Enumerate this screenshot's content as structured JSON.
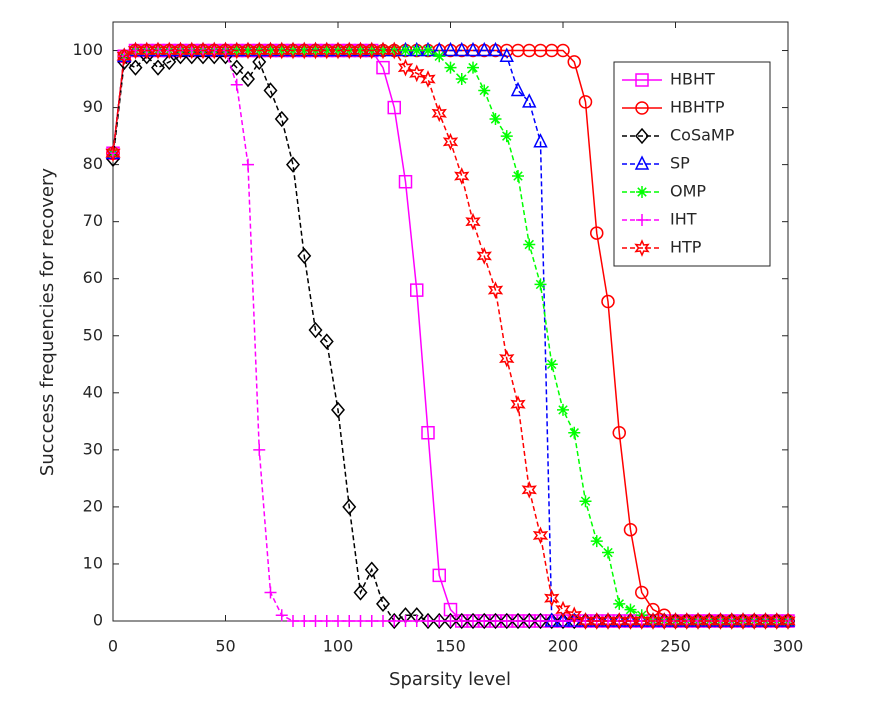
{
  "chart_data": {
    "type": "line",
    "xlabel": "Sparsity  level",
    "ylabel": "Succcess  frequencies  for  recovery",
    "xlim": [
      0,
      300
    ],
    "ylim": [
      0,
      105
    ],
    "xticks": [
      0,
      50,
      100,
      150,
      200,
      250,
      300
    ],
    "yticks": [
      0,
      10,
      20,
      30,
      40,
      50,
      60,
      70,
      80,
      90,
      100
    ],
    "legend": "upper right",
    "x": [
      0,
      5,
      10,
      15,
      20,
      25,
      30,
      35,
      40,
      45,
      50,
      55,
      60,
      65,
      70,
      75,
      80,
      85,
      90,
      95,
      100,
      105,
      110,
      115,
      120,
      125,
      130,
      135,
      140,
      145,
      150,
      155,
      160,
      165,
      170,
      175,
      180,
      185,
      190,
      195,
      200,
      205,
      210,
      215,
      220,
      225,
      230,
      235,
      240,
      245,
      250,
      255,
      260,
      265,
      270,
      275,
      280,
      285,
      290,
      295,
      300
    ],
    "series": [
      {
        "name": "HBHT",
        "color": "#ff00ff",
        "line_style": "solid",
        "marker": "square",
        "values": [
          82,
          99,
          100,
          100,
          100,
          100,
          100,
          100,
          100,
          100,
          100,
          100,
          100,
          100,
          100,
          100,
          100,
          100,
          100,
          100,
          100,
          100,
          100,
          100,
          97,
          90,
          77,
          58,
          33,
          8,
          2,
          0,
          0,
          0,
          0,
          0,
          0,
          0,
          0,
          0,
          0,
          0,
          0,
          0,
          0,
          0,
          0,
          0,
          0,
          0,
          0,
          0,
          0,
          0,
          0,
          0,
          0,
          0,
          0,
          0,
          0
        ]
      },
      {
        "name": "HBHTP",
        "color": "#ff0000",
        "line_style": "solid",
        "marker": "circle",
        "values": [
          82,
          99,
          100,
          100,
          100,
          100,
          100,
          100,
          100,
          100,
          100,
          100,
          100,
          100,
          100,
          100,
          100,
          100,
          100,
          100,
          100,
          100,
          100,
          100,
          100,
          100,
          100,
          100,
          100,
          100,
          100,
          100,
          100,
          100,
          100,
          100,
          100,
          100,
          100,
          100,
          100,
          98,
          91,
          68,
          56,
          33,
          16,
          5,
          2,
          1,
          0,
          0,
          0,
          0,
          0,
          0,
          0,
          0,
          0,
          0,
          0
        ]
      },
      {
        "name": "CoSaMP",
        "color": "#000000",
        "line_style": "dashed",
        "marker": "diamond",
        "values": [
          81,
          98,
          97,
          99,
          97,
          98,
          99,
          99,
          99,
          99,
          99,
          97,
          95,
          98,
          93,
          88,
          80,
          64,
          51,
          49,
          37,
          20,
          5,
          9,
          3,
          0,
          1,
          1,
          0,
          0,
          0,
          0,
          0,
          0,
          0,
          0,
          0,
          0,
          0,
          0,
          0,
          0,
          0,
          0,
          0,
          0,
          0,
          0,
          0,
          0,
          0,
          0,
          0,
          0,
          0,
          0,
          0,
          0,
          0,
          0,
          0
        ]
      },
      {
        "name": "SP",
        "color": "#0000ff",
        "line_style": "dashed",
        "marker": "triangle",
        "values": [
          82,
          99,
          100,
          100,
          100,
          100,
          100,
          100,
          100,
          100,
          100,
          100,
          100,
          100,
          100,
          100,
          100,
          100,
          100,
          100,
          100,
          100,
          100,
          100,
          100,
          100,
          100,
          100,
          100,
          100,
          100,
          100,
          100,
          100,
          100,
          99,
          93,
          91,
          84,
          0,
          0,
          0,
          0,
          0,
          0,
          0,
          0,
          0,
          0,
          0,
          0,
          0,
          0,
          0,
          0,
          0,
          0,
          0,
          0,
          0,
          0
        ]
      },
      {
        "name": "OMP",
        "color": "#00ff00",
        "line_style": "dashed",
        "marker": "asterisk",
        "values": [
          82,
          99,
          100,
          100,
          100,
          100,
          100,
          100,
          100,
          100,
          100,
          100,
          100,
          100,
          100,
          100,
          100,
          100,
          100,
          100,
          100,
          100,
          100,
          100,
          100,
          100,
          100,
          100,
          100,
          99,
          97,
          95,
          97,
          93,
          88,
          85,
          78,
          66,
          59,
          45,
          37,
          33,
          21,
          14,
          12,
          3,
          2,
          1,
          0,
          0,
          0,
          0,
          0,
          0,
          0,
          0,
          0,
          0,
          0,
          0,
          0
        ]
      },
      {
        "name": "IHT",
        "color": "#ff00ff",
        "line_style": "dashed",
        "marker": "plus",
        "values": [
          82,
          99,
          100,
          100,
          100,
          100,
          100,
          100,
          100,
          100,
          100,
          94,
          80,
          30,
          5,
          1,
          0,
          0,
          0,
          0,
          0,
          0,
          0,
          0,
          0,
          0,
          0,
          0,
          0,
          0,
          0,
          0,
          0,
          0,
          0,
          0,
          0,
          0,
          0,
          0,
          0,
          0,
          0,
          0,
          0,
          0,
          0,
          0,
          0,
          0,
          0,
          0,
          0,
          0,
          0,
          0,
          0,
          0,
          0,
          0,
          0
        ]
      },
      {
        "name": "HTP",
        "color": "#ff0000",
        "line_style": "dashed",
        "marker": "hexagram",
        "values": [
          82,
          99,
          100,
          100,
          100,
          100,
          100,
          100,
          100,
          100,
          100,
          100,
          100,
          100,
          100,
          100,
          100,
          100,
          100,
          100,
          100,
          100,
          100,
          100,
          100,
          100,
          97,
          96,
          95,
          89,
          84,
          78,
          70,
          64,
          58,
          46,
          38,
          23,
          15,
          4,
          2,
          1,
          0,
          0,
          0,
          0,
          0,
          0,
          0,
          0,
          0,
          0,
          0,
          0,
          0,
          0,
          0,
          0,
          0,
          0,
          0
        ]
      }
    ]
  }
}
